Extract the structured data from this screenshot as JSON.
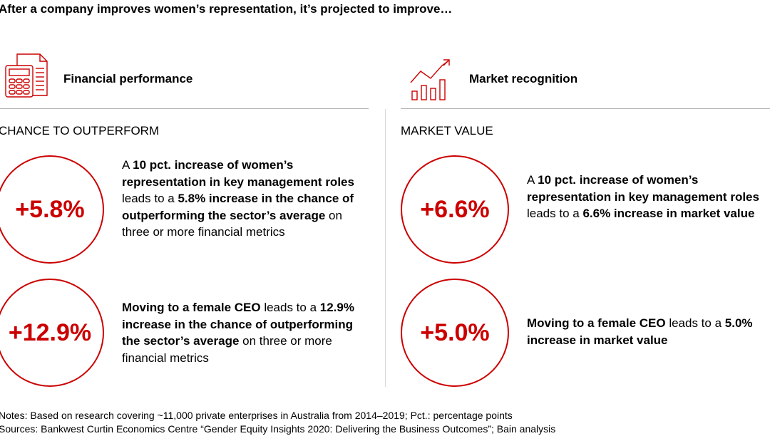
{
  "title": "After a company improves women’s representation, it’s projected to improve…",
  "left": {
    "icon": "calculator-document-icon",
    "heading": "Financial performance",
    "subheading": "CHANCE TO OUTPERFORM",
    "stats": [
      {
        "value": "+5.8%",
        "parts": [
          {
            "t": "A ",
            "b": false
          },
          {
            "t": "10 pct. increase of women’s representation in key management roles",
            "b": true
          },
          {
            "t": " leads to a ",
            "b": false
          },
          {
            "t": "5.8% increase in the chance of outperforming the sector’s average",
            "b": true
          },
          {
            "t": " on three or more financial metrics",
            "b": false
          }
        ]
      },
      {
        "value": "+12.9%",
        "parts": [
          {
            "t": "Moving to a female CEO",
            "b": true
          },
          {
            "t": " leads to a ",
            "b": false
          },
          {
            "t": "12.9% increase in the chance of outperforming the sector’s average",
            "b": true
          },
          {
            "t": " on three or more financial metrics",
            "b": false
          }
        ]
      }
    ]
  },
  "right": {
    "icon": "bar-chart-trend-icon",
    "heading": "Market recognition",
    "subheading": "MARKET VALUE",
    "stats": [
      {
        "value": "+6.6%",
        "parts": [
          {
            "t": "A ",
            "b": false
          },
          {
            "t": "10 pct. increase of women’s representation in key management",
            "b": true
          },
          {
            "t": " ",
            "b": false
          },
          {
            "t": "roles",
            "b": true
          },
          {
            "t": " leads to a ",
            "b": false
          },
          {
            "t": "6.6% increase in market value",
            "b": true
          }
        ]
      },
      {
        "value": "+5.0%",
        "parts": [
          {
            "t": "Moving to a female CEO",
            "b": true
          },
          {
            "t": " leads to a ",
            "b": false
          },
          {
            "t": "5.0% increase in market value",
            "b": true
          }
        ]
      }
    ]
  },
  "notes": "Notes: Based on research covering ~11,000 private enterprises in Australia from 2014–2019; Pct.: percentage points",
  "sources": "Sources: Bankwest Curtin Economics Centre “Gender Equity Insights 2020: Delivering the Business Outcomes”; Bain analysis",
  "colors": {
    "accent": "#cc0000",
    "divider": "#b3b3b3"
  }
}
